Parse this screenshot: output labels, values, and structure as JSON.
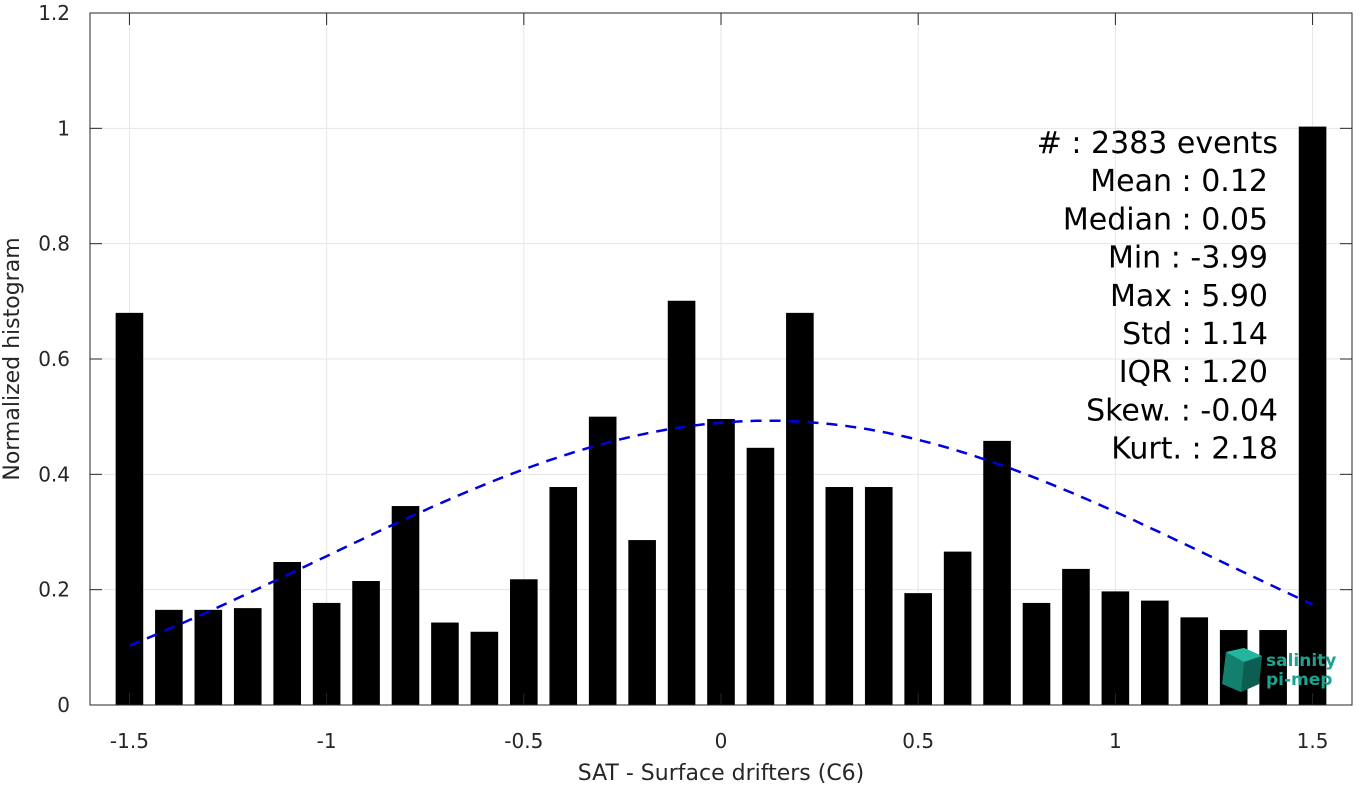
{
  "chart_data": {
    "type": "bar",
    "xlabel": "SAT - Surface drifters (C6)",
    "ylabel": "Normalized histogram",
    "xlim": [
      -1.6,
      1.6
    ],
    "ylim": [
      0,
      1.2
    ],
    "xticks": [
      -1.5,
      -1,
      -0.5,
      0,
      0.5,
      1,
      1.5
    ],
    "xtick_labels": [
      "-1.5",
      "-1",
      "-0.5",
      "0",
      "0.5",
      "1",
      "1.5"
    ],
    "yticks": [
      0,
      0.2,
      0.4,
      0.6,
      0.8,
      1,
      1.2
    ],
    "ytick_labels": [
      "0",
      "0.2",
      "0.4",
      "0.6",
      "0.8",
      "1",
      "1.2"
    ],
    "grid": true,
    "bar_color": "#000000",
    "bar_width": 0.07,
    "x": [
      -1.5,
      -1.4,
      -1.3,
      -1.2,
      -1.1,
      -1.0,
      -0.9,
      -0.8,
      -0.7,
      -0.6,
      -0.5,
      -0.4,
      -0.3,
      -0.2,
      -0.1,
      0.0,
      0.1,
      0.2,
      0.3,
      0.4,
      0.5,
      0.6,
      0.7,
      0.8,
      0.9,
      1.0,
      1.1,
      1.2,
      1.3,
      1.4,
      1.5
    ],
    "values": [
      0.68,
      0.165,
      0.165,
      0.168,
      0.248,
      0.177,
      0.215,
      0.345,
      0.143,
      0.127,
      0.218,
      0.378,
      0.5,
      0.286,
      0.701,
      0.496,
      0.446,
      0.68,
      0.378,
      0.378,
      0.194,
      0.266,
      0.458,
      0.177,
      0.236,
      0.197,
      0.181,
      0.152,
      0.13,
      0.13,
      1.003
    ],
    "fit": {
      "type": "normal",
      "style": "dashed",
      "color": "#0000dd",
      "mean": 0.12,
      "std": 1.14,
      "x_range": [
        -1.5,
        1.5
      ],
      "y_range": [
        0.103,
        0.493
      ]
    },
    "stats": [
      "#  : 2383 events",
      "Mean : 0.12",
      "Median : 0.05",
      "Min : -3.99",
      "Max : 5.90",
      "Std : 1.14",
      "IQR : 1.20",
      "Skew. : -0.04",
      "Kurt. : 2.18"
    ]
  },
  "logo": {
    "line1": "salinity",
    "line2": "pi-mep",
    "color": "#1aa38f"
  }
}
